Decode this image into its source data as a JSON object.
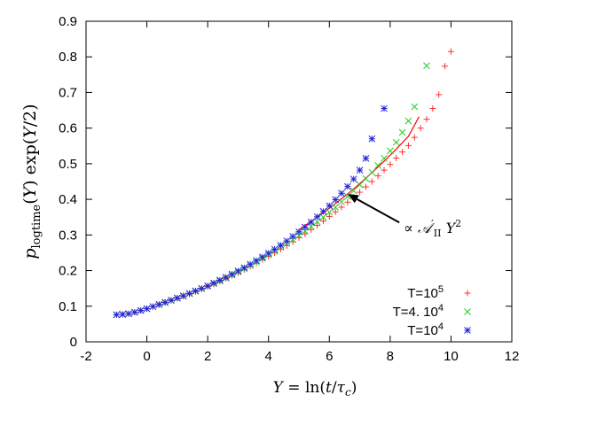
{
  "chart_data": {
    "type": "scatter",
    "title": "",
    "xlabel": "Y = ln(t/τ_c)",
    "ylabel": "p_logtime(Y) exp(Y/2)",
    "xlim": [
      -2,
      12
    ],
    "ylim": [
      0,
      0.9
    ],
    "xticks": [
      "-2",
      "0",
      "2",
      "4",
      "6",
      "8",
      "10",
      "12"
    ],
    "yticks": [
      "0",
      "0.1",
      "0.2",
      "0.3",
      "0.4",
      "0.5",
      "0.6",
      "0.7",
      "0.8",
      "0.9"
    ],
    "grid": false,
    "legend_position": "bottom-right",
    "series": [
      {
        "name": "T=10^5",
        "legend_label": "T=10",
        "legend_sup": "5",
        "marker": "plus",
        "color": "#ff3030",
        "x": [
          -1.0,
          -0.8,
          -0.6,
          -0.4,
          -0.2,
          0.0,
          0.2,
          0.4,
          0.6,
          0.8,
          1.0,
          1.2,
          1.4,
          1.6,
          1.8,
          2.0,
          2.2,
          2.4,
          2.6,
          2.8,
          3.0,
          3.2,
          3.4,
          3.6,
          3.8,
          4.0,
          4.2,
          4.4,
          4.6,
          4.8,
          5.0,
          5.2,
          5.4,
          5.6,
          5.8,
          6.0,
          6.2,
          6.4,
          6.6,
          6.8,
          7.0,
          7.2,
          7.4,
          7.6,
          7.8,
          8.0,
          8.2,
          8.4,
          8.6,
          8.8,
          9.0,
          9.2,
          9.4,
          9.6,
          9.8,
          10.0
        ],
        "y": [
          0.076,
          0.077,
          0.079,
          0.083,
          0.088,
          0.093,
          0.099,
          0.104,
          0.11,
          0.116,
          0.122,
          0.128,
          0.134,
          0.141,
          0.148,
          0.155,
          0.162,
          0.17,
          0.178,
          0.186,
          0.194,
          0.203,
          0.212,
          0.221,
          0.231,
          0.24,
          0.25,
          0.26,
          0.27,
          0.281,
          0.292,
          0.303,
          0.315,
          0.327,
          0.339,
          0.352,
          0.365,
          0.378,
          0.392,
          0.406,
          0.42,
          0.435,
          0.45,
          0.466,
          0.482,
          0.498,
          0.516,
          0.533,
          0.551,
          0.574,
          0.6,
          0.625,
          0.655,
          0.694,
          0.774,
          0.815
        ]
      },
      {
        "name": "T=4. 10^4",
        "legend_label": "T=4. 10",
        "legend_sup": "4",
        "marker": "cross",
        "color": "#22cc22",
        "x": [
          -1.0,
          -0.8,
          -0.6,
          -0.4,
          -0.2,
          0.0,
          0.2,
          0.4,
          0.6,
          0.8,
          1.0,
          1.2,
          1.4,
          1.6,
          1.8,
          2.0,
          2.2,
          2.4,
          2.6,
          2.8,
          3.0,
          3.2,
          3.4,
          3.6,
          3.8,
          4.0,
          4.2,
          4.4,
          4.6,
          4.8,
          5.0,
          5.2,
          5.4,
          5.6,
          5.8,
          6.0,
          6.2,
          6.4,
          6.6,
          6.8,
          7.0,
          7.2,
          7.4,
          7.6,
          7.8,
          8.0,
          8.2,
          8.4,
          8.6,
          8.8,
          9.2
        ],
        "y": [
          0.076,
          0.077,
          0.079,
          0.083,
          0.088,
          0.093,
          0.099,
          0.104,
          0.11,
          0.116,
          0.122,
          0.128,
          0.135,
          0.142,
          0.149,
          0.156,
          0.163,
          0.171,
          0.179,
          0.187,
          0.196,
          0.205,
          0.214,
          0.224,
          0.234,
          0.244,
          0.254,
          0.265,
          0.276,
          0.287,
          0.299,
          0.311,
          0.324,
          0.337,
          0.35,
          0.364,
          0.378,
          0.393,
          0.408,
          0.424,
          0.441,
          0.458,
          0.476,
          0.495,
          0.515,
          0.536,
          0.56,
          0.588,
          0.62,
          0.66,
          0.775
        ]
      },
      {
        "name": "T=10^4",
        "legend_label": "T=10",
        "legend_sup": "4",
        "marker": "star",
        "color": "#2222dd",
        "x": [
          -1.0,
          -0.8,
          -0.6,
          -0.4,
          -0.2,
          0.0,
          0.2,
          0.4,
          0.6,
          0.8,
          1.0,
          1.2,
          1.4,
          1.6,
          1.8,
          2.0,
          2.2,
          2.4,
          2.6,
          2.8,
          3.0,
          3.2,
          3.4,
          3.6,
          3.8,
          4.0,
          4.2,
          4.4,
          4.6,
          4.8,
          5.0,
          5.2,
          5.4,
          5.6,
          5.8,
          6.0,
          6.2,
          6.4,
          6.6,
          6.8,
          7.0,
          7.2,
          7.4,
          7.8
        ],
        "y": [
          0.076,
          0.077,
          0.079,
          0.083,
          0.088,
          0.093,
          0.099,
          0.105,
          0.111,
          0.117,
          0.123,
          0.129,
          0.136,
          0.143,
          0.15,
          0.157,
          0.165,
          0.173,
          0.181,
          0.19,
          0.199,
          0.208,
          0.218,
          0.228,
          0.238,
          0.249,
          0.26,
          0.271,
          0.283,
          0.296,
          0.309,
          0.322,
          0.336,
          0.351,
          0.366,
          0.382,
          0.399,
          0.417,
          0.436,
          0.457,
          0.482,
          0.515,
          0.57,
          0.655
        ]
      }
    ],
    "fit_line": {
      "color": "#ff0000",
      "x": [
        5.0,
        5.4,
        5.8,
        6.2,
        6.6,
        7.0,
        7.4,
        7.8,
        8.2,
        8.6,
        8.95
      ],
      "y": [
        0.315,
        0.338,
        0.362,
        0.388,
        0.415,
        0.444,
        0.475,
        0.507,
        0.541,
        0.577,
        0.632
      ]
    },
    "annotation": {
      "text": "∝ A'_II Y²",
      "arrow_tip": [
        6.6,
        0.415
      ],
      "arrow_tail": [
        8.3,
        0.335
      ]
    }
  }
}
